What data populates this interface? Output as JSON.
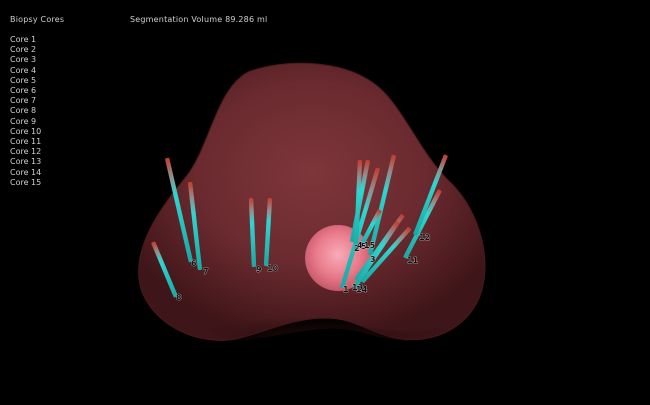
{
  "panel": {
    "title": "Biopsy Cores",
    "segmentation_label": "Segmentation Volume 89.286 ml"
  },
  "cores": [
    {
      "label": "Core 1",
      "marker": "1"
    },
    {
      "label": "Core 2",
      "marker": "2"
    },
    {
      "label": "Core 3",
      "marker": "3"
    },
    {
      "label": "Core 4",
      "marker": "4"
    },
    {
      "label": "Core 5",
      "marker": "5"
    },
    {
      "label": "Core 6",
      "marker": "6"
    },
    {
      "label": "Core 7",
      "marker": "7"
    },
    {
      "label": "Core 8",
      "marker": "8"
    },
    {
      "label": "Core 9",
      "marker": "9"
    },
    {
      "label": "Core 10",
      "marker": "10"
    },
    {
      "label": "Core 11",
      "marker": "11"
    },
    {
      "label": "Core 12",
      "marker": "12"
    },
    {
      "label": "Core 13",
      "marker": "13"
    },
    {
      "label": "Core 14",
      "marker": "14"
    },
    {
      "label": "Core 15",
      "marker": "15"
    }
  ],
  "colors": {
    "background": "#000000",
    "organ": "#6b2a2e",
    "lesion": "#ff8a9a",
    "needle": "#2fd6d0",
    "needle_tip": "#c43a2a"
  }
}
